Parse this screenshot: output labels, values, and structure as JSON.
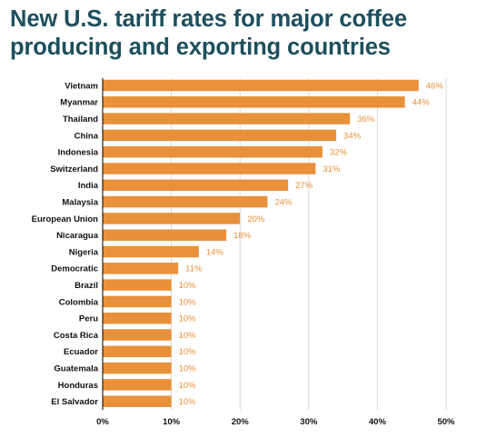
{
  "title": "New U.S. tariff rates for major coffee producing and exporting countries",
  "colors": {
    "bar": "#e8913a",
    "title": "#1d4f5d",
    "grid": "#d9d9d9",
    "axis": "#000000"
  },
  "chart_data": {
    "type": "bar",
    "orientation": "horizontal",
    "categories": [
      "Vietnam",
      "Myanmar",
      "Thailand",
      "China",
      "Indonesia",
      "Switzerland",
      "India",
      "Malaysia",
      "European Union",
      "Nicaragua",
      "Nigeria",
      "Democratic",
      "Brazil",
      "Colombia",
      "Peru",
      "Costa Rica",
      "Ecuador",
      "Guatemala",
      "Honduras",
      "El Salvador"
    ],
    "values": [
      46,
      44,
      36,
      34,
      32,
      31,
      27,
      24,
      20,
      18,
      14,
      11,
      10,
      10,
      10,
      10,
      10,
      10,
      10,
      10
    ],
    "data_labels": [
      "46%",
      "44%",
      "36%",
      "34%",
      "32%",
      "31%",
      "27%",
      "24%",
      "20%",
      "18%",
      "14%",
      "11%",
      "10%",
      "10%",
      "10%",
      "10%",
      "10%",
      "10%",
      "10%",
      "10%"
    ],
    "xlim": [
      0,
      50
    ],
    "xticks": [
      0,
      10,
      20,
      30,
      40,
      50
    ],
    "xtick_labels": [
      "0%",
      "10%",
      "20%",
      "30%",
      "40%",
      "50%"
    ],
    "grid": true,
    "legend": false
  }
}
